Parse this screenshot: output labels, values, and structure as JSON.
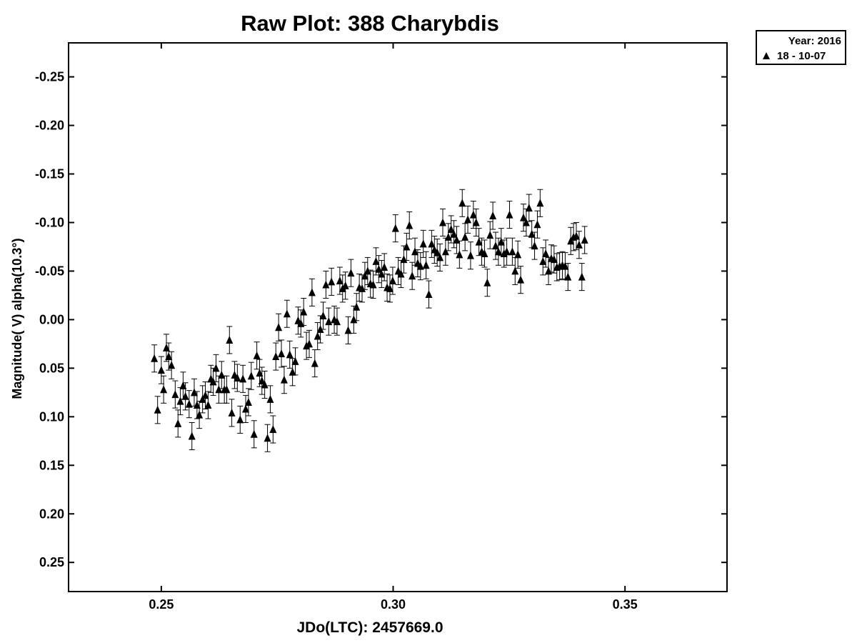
{
  "chart_data": {
    "type": "scatter",
    "title": "Raw Plot: 388 Charybdis",
    "xlabel": "JDo(LTC): 2457669.0",
    "ylabel": "Magnitude( V) alpha(10.3°)",
    "xlim": [
      0.23,
      0.372
    ],
    "ylim": [
      0.28,
      -0.285
    ],
    "y_inverted": true,
    "grid": false,
    "x_ticks": [
      0.25,
      0.3,
      0.35
    ],
    "x_tick_labels": [
      "0.25",
      "0.30",
      "0.35"
    ],
    "y_ticks": [
      -0.25,
      -0.2,
      -0.15,
      -0.1,
      -0.05,
      0.0,
      0.05,
      0.1,
      0.15,
      0.2,
      0.25
    ],
    "y_tick_labels": [
      "-0.25",
      "-0.20",
      "-0.15",
      "-0.10",
      "-0.05",
      "0.00",
      "0.05",
      "0.10",
      "0.15",
      "0.20",
      "0.25"
    ],
    "legend": {
      "placement": "outside-top-right",
      "header": "Year: 2016",
      "entries": [
        {
          "label": "18 - 10-07",
          "marker": "triangle"
        }
      ]
    },
    "error_bar_half_width": 0.014,
    "series": [
      {
        "name": "18 - 10-07",
        "marker": "triangle",
        "color": "#000000",
        "points": [
          [
            0.2485,
            0.04
          ],
          [
            0.2492,
            0.093
          ],
          [
            0.25,
            0.052
          ],
          [
            0.2505,
            0.072
          ],
          [
            0.2511,
            0.029
          ],
          [
            0.2516,
            0.038
          ],
          [
            0.2522,
            0.047
          ],
          [
            0.253,
            0.077
          ],
          [
            0.2536,
            0.107
          ],
          [
            0.2541,
            0.084
          ],
          [
            0.2547,
            0.068
          ],
          [
            0.2552,
            0.079
          ],
          [
            0.256,
            0.087
          ],
          [
            0.2566,
            0.12
          ],
          [
            0.2571,
            0.075
          ],
          [
            0.2577,
            0.088
          ],
          [
            0.2582,
            0.098
          ],
          [
            0.2589,
            0.082
          ],
          [
            0.2595,
            0.078
          ],
          [
            0.2601,
            0.088
          ],
          [
            0.2607,
            0.061
          ],
          [
            0.2612,
            0.064
          ],
          [
            0.2618,
            0.05
          ],
          [
            0.2624,
            0.072
          ],
          [
            0.263,
            0.057
          ],
          [
            0.2636,
            0.072
          ],
          [
            0.2641,
            0.072
          ],
          [
            0.2647,
            0.021
          ],
          [
            0.2652,
            0.096
          ],
          [
            0.2658,
            0.057
          ],
          [
            0.2664,
            0.06
          ],
          [
            0.267,
            0.103
          ],
          [
            0.2676,
            0.061
          ],
          [
            0.2682,
            0.092
          ],
          [
            0.2688,
            0.085
          ],
          [
            0.2694,
            0.058
          ],
          [
            0.27,
            0.118
          ],
          [
            0.2706,
            0.037
          ],
          [
            0.2712,
            0.055
          ],
          [
            0.2717,
            0.063
          ],
          [
            0.2723,
            0.067
          ],
          [
            0.2729,
            0.122
          ],
          [
            0.2735,
            0.082
          ],
          [
            0.2741,
            0.113
          ],
          [
            0.2747,
            0.038
          ],
          [
            0.2753,
            0.008
          ],
          [
            0.2759,
            0.035
          ],
          [
            0.2765,
            0.062
          ],
          [
            0.2771,
            -0.006
          ],
          [
            0.2777,
            0.036
          ],
          [
            0.2783,
            0.054
          ],
          [
            0.2789,
            0.043
          ],
          [
            0.2795,
            0.001
          ],
          [
            0.2801,
            0.004
          ],
          [
            0.2807,
            -0.008
          ],
          [
            0.2813,
            0.027
          ],
          [
            0.2819,
            0.025
          ],
          [
            0.2825,
            -0.028
          ],
          [
            0.2831,
            0.045
          ],
          [
            0.2837,
            0.017
          ],
          [
            0.2843,
            0.01
          ],
          [
            0.2849,
            -0.004
          ],
          [
            0.2855,
            -0.036
          ],
          [
            0.2861,
            0.002
          ],
          [
            0.2867,
            -0.039
          ],
          [
            0.2873,
            0.0
          ],
          [
            0.2879,
            0.002
          ],
          [
            0.2885,
            -0.04
          ],
          [
            0.2891,
            -0.032
          ],
          [
            0.2897,
            -0.035
          ],
          [
            0.2903,
            0.011
          ],
          [
            0.2909,
            -0.048
          ],
          [
            0.2915,
            0.0
          ],
          [
            0.2921,
            -0.013
          ],
          [
            0.2927,
            -0.033
          ],
          [
            0.2933,
            -0.032
          ],
          [
            0.2939,
            -0.045
          ],
          [
            0.2945,
            -0.05
          ],
          [
            0.2951,
            -0.037
          ],
          [
            0.2957,
            -0.036
          ],
          [
            0.2963,
            -0.06
          ],
          [
            0.2969,
            -0.052
          ],
          [
            0.2975,
            -0.047
          ],
          [
            0.2981,
            -0.054
          ],
          [
            0.2987,
            -0.033
          ],
          [
            0.2993,
            -0.032
          ],
          [
            0.2999,
            -0.04
          ],
          [
            0.3005,
            -0.094
          ],
          [
            0.3011,
            -0.05
          ],
          [
            0.3017,
            -0.047
          ],
          [
            0.3023,
            -0.062
          ],
          [
            0.3029,
            -0.075
          ],
          [
            0.3035,
            -0.097
          ],
          [
            0.3041,
            -0.045
          ],
          [
            0.3047,
            -0.07
          ],
          [
            0.3053,
            -0.058
          ],
          [
            0.3059,
            -0.055
          ],
          [
            0.3065,
            -0.078
          ],
          [
            0.3071,
            -0.056
          ],
          [
            0.3077,
            -0.026
          ],
          [
            0.3083,
            -0.078
          ],
          [
            0.3089,
            -0.072
          ],
          [
            0.3095,
            -0.069
          ],
          [
            0.3101,
            -0.064
          ],
          [
            0.3107,
            -0.1
          ],
          [
            0.3113,
            -0.07
          ],
          [
            0.3119,
            -0.085
          ],
          [
            0.3125,
            -0.093
          ],
          [
            0.3131,
            -0.088
          ],
          [
            0.3137,
            -0.082
          ],
          [
            0.3143,
            -0.067
          ],
          [
            0.3149,
            -0.12
          ],
          [
            0.3155,
            -0.085
          ],
          [
            0.3161,
            -0.103
          ],
          [
            0.3167,
            -0.066
          ],
          [
            0.3173,
            -0.108
          ],
          [
            0.3179,
            -0.1
          ],
          [
            0.3185,
            -0.08
          ],
          [
            0.3191,
            -0.07
          ],
          [
            0.3197,
            -0.068
          ],
          [
            0.3203,
            -0.038
          ],
          [
            0.3209,
            -0.087
          ],
          [
            0.3215,
            -0.107
          ],
          [
            0.3221,
            -0.076
          ],
          [
            0.3227,
            -0.07
          ],
          [
            0.3233,
            -0.08
          ],
          [
            0.3239,
            -0.068
          ],
          [
            0.3245,
            -0.07
          ],
          [
            0.3251,
            -0.108
          ],
          [
            0.3257,
            -0.07
          ],
          [
            0.3263,
            -0.05
          ],
          [
            0.3269,
            -0.067
          ],
          [
            0.3275,
            -0.041
          ],
          [
            0.3281,
            -0.105
          ],
          [
            0.3287,
            -0.1
          ],
          [
            0.3293,
            -0.115
          ],
          [
            0.3299,
            -0.088
          ],
          [
            0.3305,
            -0.076
          ],
          [
            0.3311,
            -0.098
          ],
          [
            0.3317,
            -0.12
          ],
          [
            0.3323,
            -0.06
          ],
          [
            0.3329,
            -0.068
          ],
          [
            0.3335,
            -0.05
          ],
          [
            0.3341,
            -0.063
          ],
          [
            0.3347,
            -0.062
          ],
          [
            0.3353,
            -0.054
          ],
          [
            0.3359,
            -0.055
          ],
          [
            0.3365,
            -0.056
          ],
          [
            0.3371,
            -0.055
          ],
          [
            0.3377,
            -0.044
          ],
          [
            0.3383,
            -0.081
          ],
          [
            0.3389,
            -0.085
          ],
          [
            0.3395,
            -0.086
          ],
          [
            0.3401,
            -0.077
          ],
          [
            0.3407,
            -0.044
          ],
          [
            0.3413,
            -0.082
          ]
        ]
      }
    ]
  }
}
